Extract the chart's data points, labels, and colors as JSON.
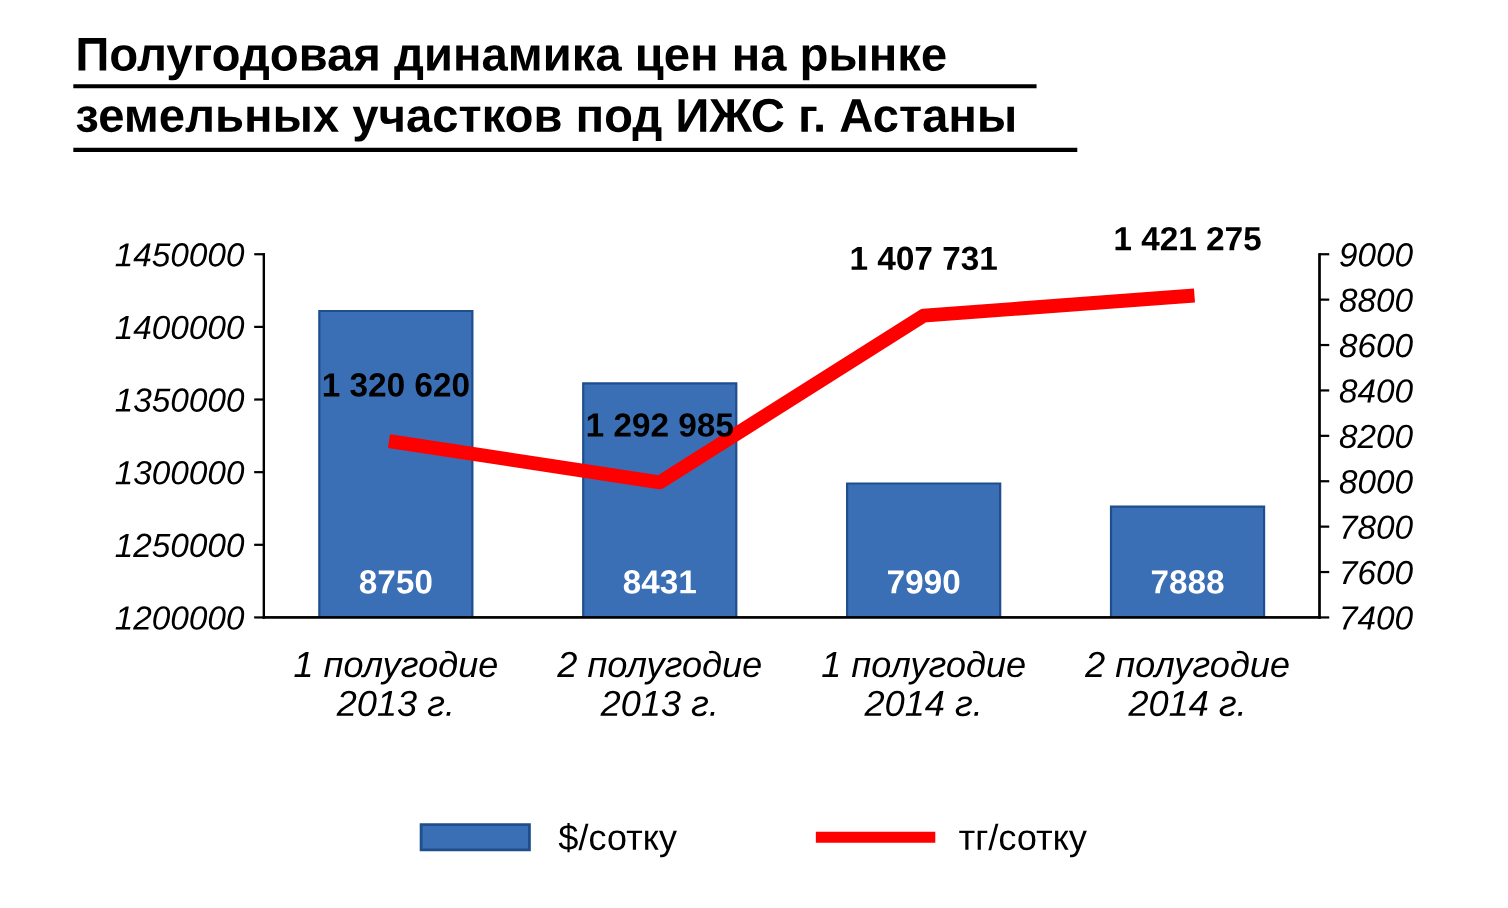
{
  "chart_data": {
    "type": "bar",
    "title": "Полугодовая динамика цен на рынке\nземельных участков под ИЖС г. Астаны",
    "categories": [
      "1 полугодие\n2013 г.",
      "2 полугодие\n2013 г.",
      "1 полугодие\n2014 г.",
      "2 полугодие\n2014 г."
    ],
    "series": [
      {
        "name": "$/сотку",
        "axis": "y2",
        "color": "#3a6fb5",
        "values": [
          8750,
          8431,
          7990,
          7888
        ],
        "value_labels": [
          "8750",
          "8431",
          "7990",
          "7888"
        ]
      },
      {
        "name": "тг/сотку",
        "type": "line",
        "axis": "y",
        "color": "#ff0000",
        "values": [
          1320620,
          1292985,
          1407731,
          1421275
        ],
        "value_labels": [
          "1 320 620",
          "1 292 985",
          "1 407 731",
          "1 421 275"
        ]
      }
    ],
    "ylim": [
      1200000,
      1450000
    ],
    "yticks": [
      1200000,
      1250000,
      1300000,
      1350000,
      1400000,
      1450000
    ],
    "y2lim": [
      7400,
      9000
    ],
    "y2ticks": [
      7400,
      7600,
      7800,
      8000,
      8200,
      8400,
      8600,
      8800,
      9000
    ],
    "grid": false,
    "legend": "bottom",
    "marker": "none",
    "line_style": "solid"
  }
}
